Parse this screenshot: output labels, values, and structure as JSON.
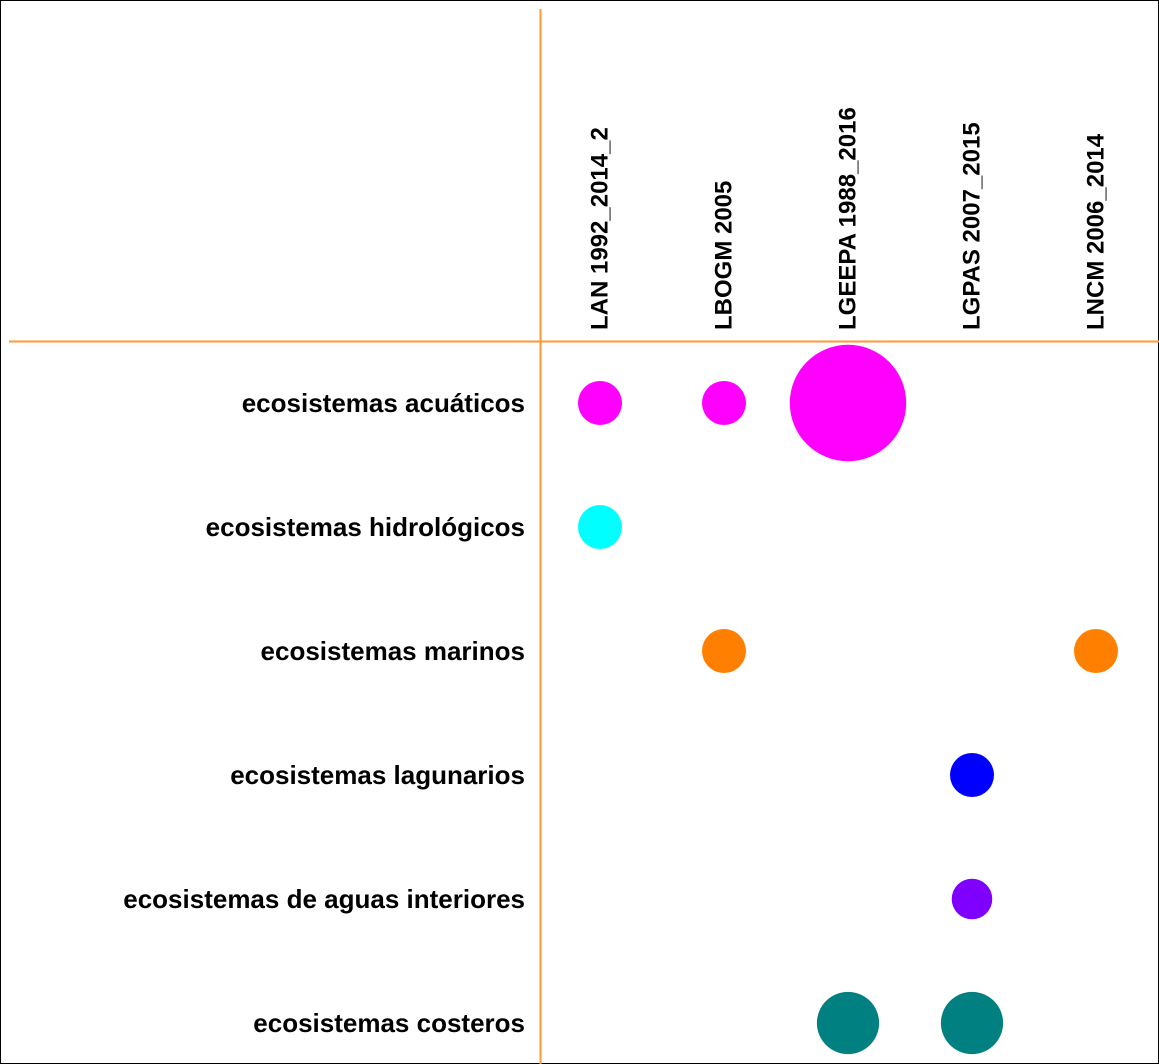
{
  "chart_data": {
    "type": "bubble",
    "categories": [
      "LAN 1992_2014_2",
      "LBOGM 2005",
      "LGEEPA 1988_2016",
      "LGPAS 2007_2015",
      "LNCM 2006_2014"
    ],
    "series": [
      {
        "name": "ecosistemas acuáticos",
        "color": "#ff00ff",
        "values": [
          1,
          1,
          7,
          null,
          null
        ]
      },
      {
        "name": "ecosistemas hidrológicos",
        "color": "#00ffff",
        "values": [
          1,
          null,
          null,
          null,
          null
        ]
      },
      {
        "name": "ecosistemas marinos",
        "color": "#ff8000",
        "values": [
          null,
          1,
          null,
          null,
          1
        ]
      },
      {
        "name": "ecosistemas lagunarios",
        "color": "#0000ff",
        "values": [
          null,
          null,
          null,
          1,
          null
        ]
      },
      {
        "name": "ecosistemas de aguas interiores",
        "color": "#8000ff",
        "values": [
          null,
          null,
          null,
          0.85,
          null
        ]
      },
      {
        "name": "ecosistemas costeros",
        "color": "#008080",
        "values": [
          null,
          null,
          2,
          2,
          null
        ]
      }
    ]
  }
}
